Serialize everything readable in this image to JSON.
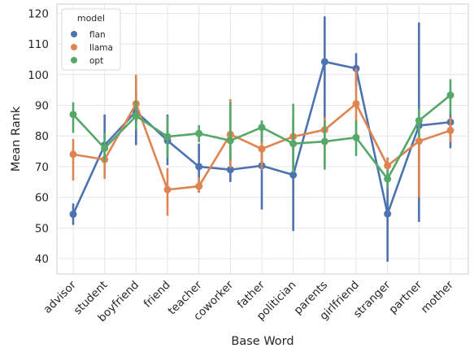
{
  "chart_data": {
    "type": "line",
    "xlabel": "Base Word",
    "ylabel": "Mean Rank",
    "categories": [
      "advisor",
      "student",
      "boyfriend",
      "friend",
      "teacher",
      "coworker",
      "father",
      "politician",
      "parents",
      "girlfriend",
      "stranger",
      "partner",
      "mother"
    ],
    "ylim": [
      35,
      123
    ],
    "yticks": [
      40,
      50,
      60,
      70,
      80,
      90,
      100,
      110,
      120
    ],
    "grid": true,
    "legend": {
      "title": "model",
      "placement": "top-left"
    },
    "series": [
      {
        "name": "flan",
        "color": "#4C72B0",
        "values": [
          54.5,
          77,
          88,
          78.5,
          70,
          69,
          70.3,
          67.3,
          104.2,
          102,
          54.6,
          83.4,
          84.5
        ],
        "ci_low": [
          51,
          72,
          77,
          70.5,
          61.5,
          65,
          56,
          49,
          83,
          96,
          39,
          52,
          76
        ],
        "ci_high": [
          58,
          87,
          95,
          87,
          77.5,
          76,
          85,
          86,
          119,
          107,
          68,
          117,
          88
        ]
      },
      {
        "name": "llama",
        "color": "#DD8452",
        "values": [
          74,
          72.3,
          90.5,
          62.5,
          63.6,
          80.5,
          75.8,
          79.8,
          82,
          90.5,
          70.3,
          78.3,
          81.8
        ],
        "ci_low": [
          65.5,
          66,
          84,
          54,
          61.5,
          69.5,
          69,
          70,
          70,
          80,
          67,
          60,
          78
        ],
        "ci_high": [
          79,
          76,
          100,
          69.5,
          66.5,
          92,
          82,
          85,
          86,
          102,
          73,
          84,
          86
        ]
      },
      {
        "name": "opt",
        "color": "#55A868",
        "values": [
          87,
          76,
          86.5,
          79.8,
          80.8,
          78.5,
          82.8,
          77.5,
          78.2,
          79.5,
          66,
          85,
          93.3
        ],
        "ci_low": [
          81,
          71.5,
          82,
          73,
          78,
          72,
          78,
          68,
          69,
          73.5,
          63,
          79.5,
          87
        ],
        "ci_high": [
          91,
          81,
          91.5,
          86.5,
          83.5,
          91,
          85,
          90.5,
          85,
          85,
          69,
          89,
          98.5
        ]
      }
    ]
  }
}
